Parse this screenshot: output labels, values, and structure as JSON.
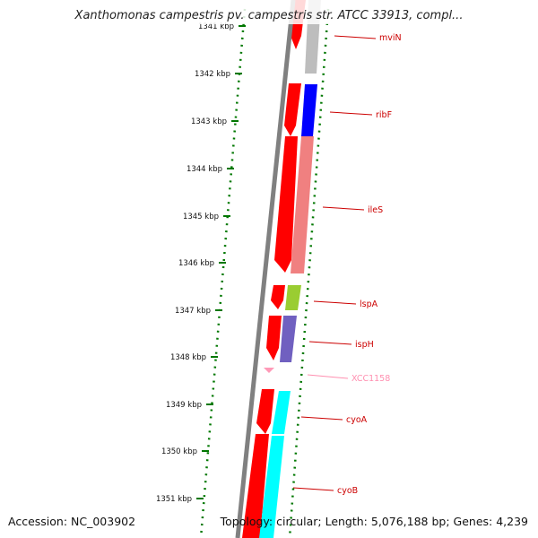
{
  "title": "Xanthomonas campestris pv. campestris str. ATCC 33913, compl...",
  "footer": {
    "accession": "Accession: NC_003902",
    "topology": "Topology: circular; Length: 5,076,188 bp; Genes: 4,239"
  },
  "ruler": {
    "unit": "kbp",
    "ticks": [
      {
        "label": "1341 kbp",
        "kbp": 1341
      },
      {
        "label": "1342 kbp",
        "kbp": 1342
      },
      {
        "label": "1343 kbp",
        "kbp": 1343
      },
      {
        "label": "1344 kbp",
        "kbp": 1344
      },
      {
        "label": "1345 kbp",
        "kbp": 1345
      },
      {
        "label": "1346 kbp",
        "kbp": 1346
      },
      {
        "label": "1347 kbp",
        "kbp": 1347
      },
      {
        "label": "1348 kbp",
        "kbp": 1348
      },
      {
        "label": "1349 kbp",
        "kbp": 1349
      },
      {
        "label": "1350 kbp",
        "kbp": 1350
      },
      {
        "label": "1351 kbp",
        "kbp": 1351
      }
    ]
  },
  "colors": {
    "cds": "#ff0000",
    "backbone": "#808080",
    "ruler": "#007700",
    "label_line": "#cc0000",
    "label_text": "#cc0000",
    "pseudo": "#ff9ab8"
  },
  "genes": [
    {
      "name": "mviN",
      "color": "#bdbdbd",
      "label_color": "#cc0000"
    },
    {
      "name": "ribF",
      "color": "#0000ff",
      "label_color": "#cc0000"
    },
    {
      "name": "ileS",
      "color": "#f08080",
      "label_color": "#cc0000"
    },
    {
      "name": "lspA",
      "color": "#9acd32",
      "label_color": "#cc0000"
    },
    {
      "name": "ispH",
      "color": "#7060c0",
      "label_color": "#cc0000"
    },
    {
      "name": "XCC1158",
      "color": "#ff9ab8",
      "label_color": "#ff8fb0"
    },
    {
      "name": "cyoA",
      "color": "#00ffff",
      "label_color": "#cc0000"
    },
    {
      "name": "cyoB",
      "color": "#00ffff",
      "label_color": "#cc0000"
    }
  ]
}
